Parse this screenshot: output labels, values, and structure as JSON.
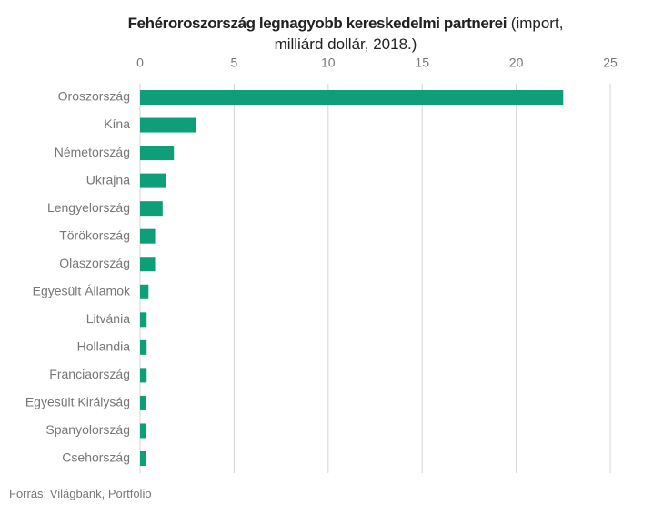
{
  "chart_data": {
    "type": "bar",
    "orientation": "horizontal",
    "title": "Fehéroroszország legnagyobb kereskedelmi partnerei",
    "subtitle": "(import, milliárd dollár, 2018.)",
    "source": "Forrás: Világbank, Portfolio",
    "categories": [
      "Oroszország",
      "Kína",
      "Németország",
      "Ukrajna",
      "Lengyelország",
      "Törökország",
      "Olaszország",
      "Egyesült Államok",
      "Litvánia",
      "Hollandia",
      "Franciaország",
      "Egyesült Királyság",
      "Spanyolország",
      "Csehország"
    ],
    "values": [
      22.5,
      3.0,
      1.8,
      1.4,
      1.2,
      0.8,
      0.8,
      0.45,
      0.35,
      0.35,
      0.35,
      0.3,
      0.3,
      0.3
    ],
    "color": "#0e9f78",
    "xlim": [
      0,
      25
    ],
    "xticks": [
      0,
      5,
      10,
      15,
      20,
      25
    ],
    "grid": true
  }
}
